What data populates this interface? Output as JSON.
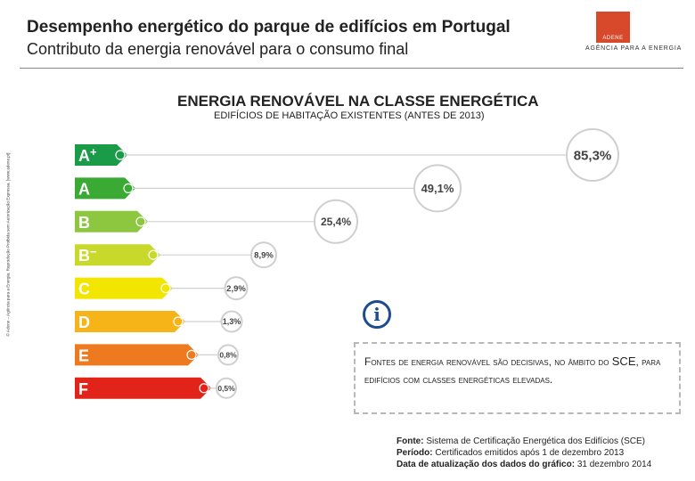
{
  "header": {
    "title": "Desempenho energético do parque de edifícios em Portugal",
    "subtitle": "Contributo da energia renovável para o consumo final"
  },
  "logo": {
    "mark_text": "ADENE",
    "caption": "AGÊNCIA PARA A ENERGIA",
    "color": "#d7492a"
  },
  "side_note": "© Adene – Agência para a Energia. Reprodução Proibida sem Autorização Expressa. [www.adene.pt]",
  "chart_data": {
    "type": "bar",
    "title": "ENERGIA RENOVÁVEL NA CLASSE ENERGÉTICA",
    "subtitle": "EDIFÍCIOS DE HABITAÇÃO EXISTENTES (ANTES DE 2013)",
    "categories": [
      "A+",
      "A",
      "B",
      "B-",
      "C",
      "D",
      "E",
      "F"
    ],
    "values": [
      85.3,
      49.1,
      25.4,
      8.9,
      2.9,
      1.3,
      0.8,
      0.5
    ],
    "value_labels": [
      "85,3%",
      "49,1%",
      "25,4%",
      "8,9%",
      "2,9%",
      "1,3%",
      "0,8%",
      "0,5%"
    ],
    "category_labels": [
      "A",
      "A",
      "B",
      "B",
      "C",
      "D",
      "E",
      "F"
    ],
    "category_superscripts": [
      "+",
      "",
      "",
      "−",
      "",
      "",
      "",
      ""
    ],
    "colors": [
      "#1a9b48",
      "#3aaa35",
      "#8dc63f",
      "#c9d92c",
      "#f2e500",
      "#f7b418",
      "#ee7a1f",
      "#e2231a"
    ],
    "unit": "%",
    "xlabel": "",
    "ylabel": ""
  },
  "callout": {
    "text_part1": "Fontes de energia renovável são decisivas, no âmbito do ",
    "text_em": "SCE",
    "text_part2": ", para edifícios com classes energéticas elevadas."
  },
  "source": {
    "fonte_label": "Fonte:",
    "fonte_value": "Sistema de Certificação Energética dos Edifícios (SCE)",
    "periodo_label": "Período:",
    "periodo_value": "Certificados emitidos após 1 de dezembro 2013",
    "data_label": "Data de atualização dos dados do gráfico:",
    "data_value": "31 dezembro 2014"
  }
}
